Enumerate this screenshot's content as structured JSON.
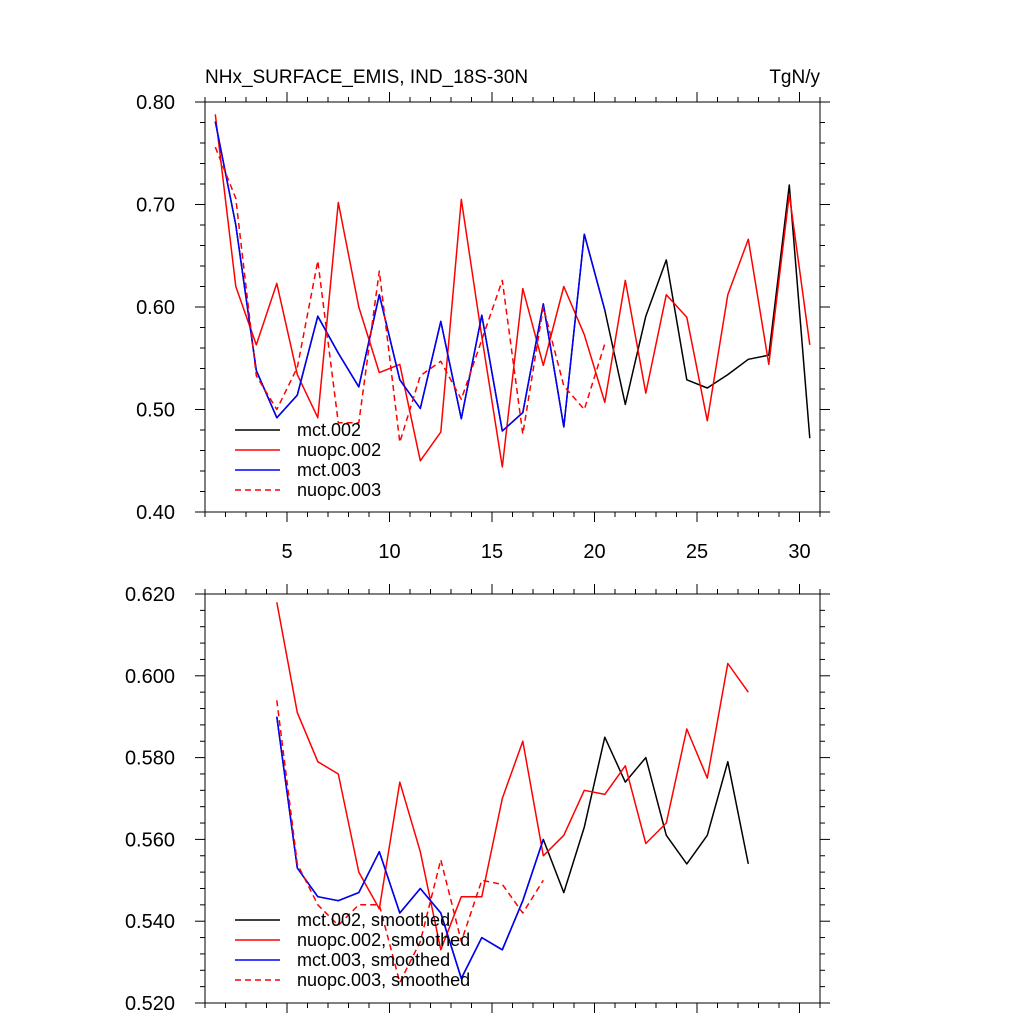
{
  "chart_data": [
    {
      "type": "line",
      "title": "NHx_SURFACE_EMIS, IND_18S-30N",
      "units": "TgN/y",
      "xlabel": "",
      "ylabel": "",
      "xlim": [
        1,
        31
      ],
      "ylim": [
        0.4,
        0.8
      ],
      "xticks": [
        5,
        10,
        15,
        20,
        25,
        30
      ],
      "xtick_labels": [
        "5",
        "10",
        "15",
        "20",
        "25",
        "30"
      ],
      "yticks": [
        0.4,
        0.5,
        0.6,
        0.7,
        0.8
      ],
      "ytick_labels": [
        "0.40",
        "0.50",
        "0.60",
        "0.70",
        "0.80"
      ],
      "legend_position": "bottom-left",
      "series": [
        {
          "name": "mct.002",
          "color": "#000000",
          "dash": "solid",
          "x": [
            1.5,
            2.5,
            3.5,
            4.5,
            5.5,
            6.5,
            7.5,
            8.5,
            9.5,
            10.5,
            11.5,
            12.5,
            13.5,
            14.5,
            15.5,
            16.5,
            17.5,
            18.5,
            19.5,
            20.5,
            21.5,
            22.5,
            23.5,
            24.5,
            25.5,
            26.5,
            27.5,
            28.5,
            29.5,
            30.5
          ],
          "values": [
            0.781,
            0.68,
            0.538,
            0.492,
            0.514,
            0.591,
            0.555,
            0.522,
            0.612,
            0.529,
            0.501,
            0.586,
            0.491,
            0.592,
            0.479,
            0.497,
            0.603,
            0.483,
            0.671,
            0.597,
            0.505,
            0.591,
            0.646,
            0.529,
            0.521,
            0.534,
            0.549,
            0.553,
            0.719,
            0.472
          ]
        },
        {
          "name": "nuopc.002",
          "color": "#ff0000",
          "dash": "solid",
          "x": [
            1.5,
            2.5,
            3.5,
            4.5,
            5.5,
            6.5,
            7.5,
            8.5,
            9.5,
            10.5,
            11.5,
            12.5,
            13.5,
            14.5,
            15.5,
            16.5,
            17.5,
            18.5,
            19.5,
            20.5,
            21.5,
            22.5,
            23.5,
            24.5,
            25.5,
            26.5,
            27.5,
            28.5,
            29.5,
            30.5
          ],
          "values": [
            0.788,
            0.62,
            0.563,
            0.623,
            0.534,
            0.492,
            0.702,
            0.6,
            0.536,
            0.544,
            0.45,
            0.478,
            0.705,
            0.571,
            0.444,
            0.618,
            0.543,
            0.62,
            0.573,
            0.507,
            0.626,
            0.516,
            0.612,
            0.59,
            0.489,
            0.612,
            0.666,
            0.544,
            0.71,
            0.563
          ]
        },
        {
          "name": "mct.003",
          "color": "#0000ff",
          "dash": "solid",
          "x": [
            1.5,
            2.5,
            3.5,
            4.5,
            5.5,
            6.5,
            7.5,
            8.5,
            9.5,
            10.5,
            11.5,
            12.5,
            13.5,
            14.5,
            15.5,
            16.5,
            17.5,
            18.5,
            19.5,
            20.5
          ],
          "values": [
            0.781,
            0.68,
            0.538,
            0.492,
            0.514,
            0.591,
            0.555,
            0.522,
            0.612,
            0.529,
            0.501,
            0.586,
            0.491,
            0.592,
            0.479,
            0.497,
            0.603,
            0.483,
            0.671,
            0.597
          ]
        },
        {
          "name": "nuopc.003",
          "color": "#ff0000",
          "dash": "dashed",
          "x": [
            1.5,
            2.5,
            3.5,
            4.5,
            5.5,
            6.5,
            7.5,
            8.5,
            9.5,
            10.5,
            11.5,
            12.5,
            13.5,
            14.5,
            15.5,
            16.5,
            17.5,
            18.5,
            19.5,
            20.5
          ],
          "values": [
            0.756,
            0.706,
            0.533,
            0.5,
            0.541,
            0.645,
            0.487,
            0.487,
            0.635,
            0.468,
            0.533,
            0.547,
            0.51,
            0.568,
            0.626,
            0.476,
            0.6,
            0.523,
            0.5,
            0.564
          ]
        }
      ]
    },
    {
      "type": "line",
      "title": "",
      "xlabel": "",
      "ylabel": "",
      "xlim": [
        1,
        31
      ],
      "ylim": [
        0.52,
        0.62
      ],
      "xticks": [
        5,
        10,
        15,
        20,
        25,
        30
      ],
      "xtick_labels": [],
      "yticks": [
        0.52,
        0.54,
        0.56,
        0.58,
        0.6,
        0.62
      ],
      "ytick_labels": [
        "0.520",
        "0.540",
        "0.560",
        "0.580",
        "0.600",
        "0.620"
      ],
      "legend_position": "bottom-left",
      "series": [
        {
          "name": "mct.002, smoothed",
          "color": "#000000",
          "dash": "solid",
          "x": [
            4.5,
            5.5,
            6.5,
            7.5,
            8.5,
            9.5,
            10.5,
            11.5,
            12.5,
            13.5,
            14.5,
            15.5,
            16.5,
            17.5,
            18.5,
            19.5,
            20.5,
            21.5,
            22.5,
            23.5,
            24.5,
            25.5,
            26.5,
            27.5
          ],
          "values": [
            0.59,
            0.553,
            0.546,
            0.545,
            0.547,
            0.557,
            0.542,
            0.548,
            0.542,
            0.526,
            0.536,
            0.533,
            0.545,
            0.56,
            0.547,
            0.563,
            0.585,
            0.574,
            0.58,
            0.561,
            0.554,
            0.561,
            0.579,
            0.554
          ]
        },
        {
          "name": "nuopc.002, smoothed",
          "color": "#ff0000",
          "dash": "solid",
          "x": [
            4.5,
            5.5,
            6.5,
            7.5,
            8.5,
            9.5,
            10.5,
            11.5,
            12.5,
            13.5,
            14.5,
            15.5,
            16.5,
            17.5,
            18.5,
            19.5,
            20.5,
            21.5,
            22.5,
            23.5,
            24.5,
            25.5,
            26.5,
            27.5
          ],
          "values": [
            0.618,
            0.591,
            0.579,
            0.576,
            0.552,
            0.543,
            0.574,
            0.557,
            0.533,
            0.546,
            0.546,
            0.57,
            0.584,
            0.556,
            0.561,
            0.572,
            0.571,
            0.578,
            0.559,
            0.564,
            0.587,
            0.575,
            0.603,
            0.596
          ]
        },
        {
          "name": "mct.003, smoothed",
          "color": "#0000ff",
          "dash": "solid",
          "x": [
            4.5,
            5.5,
            6.5,
            7.5,
            8.5,
            9.5,
            10.5,
            11.5,
            12.5,
            13.5,
            14.5,
            15.5,
            16.5,
            17.5
          ],
          "values": [
            0.59,
            0.553,
            0.546,
            0.545,
            0.547,
            0.557,
            0.542,
            0.548,
            0.542,
            0.526,
            0.536,
            0.533,
            0.545,
            0.56
          ]
        },
        {
          "name": "nuopc.003, smoothed",
          "color": "#ff0000",
          "dash": "dashed",
          "x": [
            4.5,
            5.5,
            6.5,
            7.5,
            8.5,
            9.5,
            10.5,
            11.5,
            12.5,
            13.5,
            14.5,
            15.5,
            16.5,
            17.5
          ],
          "values": [
            0.594,
            0.554,
            0.544,
            0.539,
            0.544,
            0.544,
            0.525,
            0.535,
            0.555,
            0.535,
            0.55,
            0.549,
            0.542,
            0.55
          ]
        }
      ]
    }
  ]
}
